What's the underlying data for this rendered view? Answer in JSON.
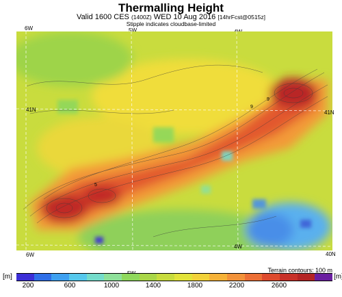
{
  "header": {
    "title": "Thermalling Height",
    "subtitle_main": "Valid 1600 CES",
    "subtitle_zulu": "(1400Z)",
    "subtitle_date": "WED 10 Aug 2016",
    "subtitle_forecast": "[14hrFcst@0515z]",
    "note": "Stipple indicates cloudbase-limited"
  },
  "map": {
    "longitude_labels_top": [
      "6W",
      "5W",
      "4W"
    ],
    "longitude_labels_bottom": [
      "6W",
      "5W",
      "4W"
    ],
    "latitude_labels_left": [
      "41N"
    ],
    "latitude_labels_right": [
      "41N",
      "40N"
    ],
    "contour_note": "Terrain contours: 100 m",
    "contour_labels": [
      "9",
      "9",
      "5"
    ]
  },
  "colorbar": {
    "unit": "[m]",
    "tick_labels": [
      "200",
      "600",
      "1000",
      "1400",
      "1800",
      "2200",
      "2600"
    ],
    "colors": [
      "#3c2fd6",
      "#2f6fe8",
      "#3ea0f0",
      "#56c8ec",
      "#74dccb",
      "#8ee09a",
      "#8fd85c",
      "#a9d648",
      "#c8dc3e",
      "#e2e33a",
      "#f2d23a",
      "#f6b238",
      "#f2923a",
      "#ec6f36",
      "#de4b2e",
      "#c83028",
      "#b42424",
      "#6a1fa0"
    ]
  }
}
